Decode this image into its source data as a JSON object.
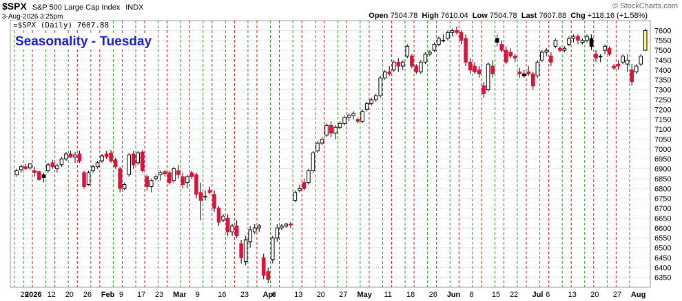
{
  "header": {
    "symbol": "$SPX",
    "name": "S&P 500 Large Cap Index",
    "exchange": "INDX",
    "date": "3-Aug-2026 3:25pm",
    "brand": "© StockCharts.com",
    "open_label": "Open",
    "open": "7504.78",
    "high_label": "High",
    "high": "7610.04",
    "low_label": "Low",
    "low": "7504.78",
    "last_label": "Last",
    "last": "7607.88",
    "chg_label": "Chg",
    "chg": "+118.16 (+1.58%)"
  },
  "legend": "▫$SPX (Daily) 7607.88",
  "annotation": "Seasonality - Tuesday",
  "colors": {
    "up": "#ffffff",
    "down": "#e0103a",
    "down_black": "#000000",
    "current": "#ffff66",
    "tuesday_line": "#d11c1c",
    "other_line": "#2a9a2a",
    "annotation": "#1a1adc"
  },
  "chart_data": {
    "type": "candlestick",
    "title": "$SPX S&P 500 Large Cap Index INDX",
    "annotation": "Seasonality - Tuesday",
    "ylim": [
      6300,
      7650
    ],
    "y_ticks": [
      6350,
      6400,
      6450,
      6500,
      6550,
      6600,
      6650,
      6700,
      6750,
      6800,
      6850,
      6900,
      6950,
      7000,
      7050,
      7100,
      7150,
      7200,
      7250,
      7300,
      7350,
      7400,
      7450,
      7500,
      7550,
      7600
    ],
    "x_ticks": [
      "29",
      "2026",
      "12",
      "20",
      "26",
      "Feb",
      "9",
      "17",
      "23",
      "Mar",
      "9",
      "16",
      "23",
      "Apr",
      "6",
      "13",
      "20",
      "27",
      "May",
      "11",
      "18",
      "26",
      "Jun",
      "8",
      "15",
      "22",
      "Jul",
      "6",
      "13",
      "20",
      "27",
      "Aug"
    ],
    "x_tick_index": [
      1,
      2,
      7,
      11,
      15,
      19,
      23,
      27,
      31,
      35,
      40,
      45,
      50,
      55,
      57,
      62,
      67,
      72,
      76,
      82,
      87,
      92,
      96,
      101,
      106,
      110,
      115,
      118,
      123,
      128,
      133,
      137
    ],
    "vertical_lines": [
      {
        "i": 0,
        "c": "g"
      },
      {
        "i": 2,
        "c": "g"
      },
      {
        "i": 4,
        "c": "r"
      },
      {
        "i": 7,
        "c": "g"
      },
      {
        "i": 9,
        "c": "r"
      },
      {
        "i": 12,
        "c": "g"
      },
      {
        "i": 14,
        "c": "r"
      },
      {
        "i": 17,
        "c": "g"
      },
      {
        "i": 19,
        "c": "r"
      },
      {
        "i": 22,
        "c": "g"
      },
      {
        "i": 24,
        "c": "r"
      },
      {
        "i": 27,
        "c": "g"
      },
      {
        "i": 29,
        "c": "r"
      },
      {
        "i": 32,
        "c": "g"
      },
      {
        "i": 34,
        "c": "r"
      },
      {
        "i": 37,
        "c": "g"
      },
      {
        "i": 39,
        "c": "r"
      },
      {
        "i": 42,
        "c": "g"
      },
      {
        "i": 44,
        "c": "r"
      },
      {
        "i": 47,
        "c": "g"
      },
      {
        "i": 49,
        "c": "r"
      },
      {
        "i": 52,
        "c": "g"
      },
      {
        "i": 54,
        "c": "r"
      },
      {
        "i": 57,
        "c": "g"
      },
      {
        "i": 59,
        "c": "r"
      },
      {
        "i": 62,
        "c": "g"
      },
      {
        "i": 64,
        "c": "r"
      },
      {
        "i": 67,
        "c": "g"
      },
      {
        "i": 69,
        "c": "r"
      },
      {
        "i": 72,
        "c": "g"
      },
      {
        "i": 74,
        "c": "r"
      },
      {
        "i": 77,
        "c": "g"
      },
      {
        "i": 79,
        "c": "r"
      },
      {
        "i": 82,
        "c": "g"
      },
      {
        "i": 84,
        "c": "r"
      },
      {
        "i": 87,
        "c": "g"
      },
      {
        "i": 89,
        "c": "r"
      },
      {
        "i": 92,
        "c": "g"
      },
      {
        "i": 94,
        "c": "r"
      },
      {
        "i": 97,
        "c": "g"
      },
      {
        "i": 99,
        "c": "r"
      },
      {
        "i": 102,
        "c": "g"
      },
      {
        "i": 104,
        "c": "r"
      },
      {
        "i": 107,
        "c": "g"
      },
      {
        "i": 109,
        "c": "r"
      },
      {
        "i": 112,
        "c": "g"
      },
      {
        "i": 114,
        "c": "r"
      },
      {
        "i": 117,
        "c": "g"
      },
      {
        "i": 119,
        "c": "r"
      },
      {
        "i": 122,
        "c": "g"
      },
      {
        "i": 124,
        "c": "r"
      },
      {
        "i": 127,
        "c": "g"
      },
      {
        "i": 129,
        "c": "r"
      },
      {
        "i": 132,
        "c": "g"
      },
      {
        "i": 134,
        "c": "r"
      },
      {
        "i": 137,
        "c": "g"
      }
    ],
    "ohlc": [
      [
        6870,
        6900,
        6860,
        6890
      ],
      [
        6895,
        6920,
        6880,
        6910
      ],
      [
        6910,
        6925,
        6895,
        6900
      ],
      [
        6905,
        6930,
        6895,
        6925
      ],
      [
        6890,
        6910,
        6860,
        6880
      ],
      [
        6885,
        6890,
        6840,
        6845
      ],
      [
        6870,
        6880,
        6830,
        6855
      ],
      [
        6890,
        6930,
        6880,
        6920
      ],
      [
        6930,
        6945,
        6900,
        6910
      ],
      [
        6900,
        6925,
        6880,
        6915
      ],
      [
        6920,
        6960,
        6910,
        6950
      ],
      [
        6950,
        6985,
        6940,
        6975
      ],
      [
        6975,
        6990,
        6955,
        6960
      ],
      [
        6960,
        6985,
        6930,
        6970
      ],
      [
        6975,
        6990,
        6930,
        6940
      ],
      [
        6880,
        6890,
        6800,
        6810
      ],
      [
        6820,
        6890,
        6815,
        6880
      ],
      [
        6890,
        6920,
        6880,
        6910
      ],
      [
        6910,
        6940,
        6900,
        6930
      ],
      [
        6940,
        6975,
        6930,
        6965
      ],
      [
        6975,
        6990,
        6950,
        6960
      ],
      [
        6980,
        6995,
        6930,
        6940
      ],
      [
        6945,
        6955,
        6900,
        6910
      ],
      [
        6900,
        6910,
        6780,
        6800
      ],
      [
        6800,
        6830,
        6790,
        6820
      ],
      [
        6870,
        6980,
        6860,
        6970
      ],
      [
        6975,
        6990,
        6900,
        6920
      ],
      [
        6930,
        6990,
        6920,
        6980
      ],
      [
        6985,
        6995,
        6880,
        6890
      ],
      [
        6860,
        6870,
        6790,
        6810
      ],
      [
        6810,
        6850,
        6780,
        6840
      ],
      [
        6850,
        6870,
        6840,
        6860
      ],
      [
        6870,
        6890,
        6840,
        6880
      ],
      [
        6885,
        6895,
        6860,
        6875
      ],
      [
        6880,
        6890,
        6820,
        6830
      ],
      [
        6840,
        6910,
        6830,
        6900
      ],
      [
        6890,
        6920,
        6850,
        6870
      ],
      [
        6860,
        6880,
        6800,
        6820
      ],
      [
        6830,
        6870,
        6800,
        6860
      ],
      [
        6880,
        6890,
        6850,
        6860
      ],
      [
        6870,
        6880,
        6750,
        6770
      ],
      [
        6780,
        6830,
        6640,
        6740
      ],
      [
        6760,
        6790,
        6740,
        6760
      ],
      [
        6790,
        6810,
        6770,
        6780
      ],
      [
        6770,
        6790,
        6680,
        6700
      ],
      [
        6700,
        6710,
        6610,
        6630
      ],
      [
        6640,
        6670,
        6630,
        6660
      ],
      [
        6650,
        6670,
        6560,
        6580
      ],
      [
        6580,
        6620,
        6560,
        6610
      ],
      [
        6610,
        6640,
        6550,
        6560
      ],
      [
        6520,
        6540,
        6420,
        6450
      ],
      [
        6430,
        6560,
        6410,
        6540
      ],
      [
        6530,
        6610,
        6500,
        6590
      ],
      [
        6580,
        6620,
        6570,
        6600
      ],
      [
        6600,
        6620,
        6580,
        6610
      ],
      [
        6450,
        6470,
        6340,
        6360
      ],
      [
        6380,
        6400,
        6320,
        6340
      ],
      [
        6440,
        6560,
        6420,
        6550
      ],
      [
        6550,
        6620,
        6530,
        6600
      ],
      [
        6600,
        6620,
        6590,
        6610
      ],
      [
        6610,
        6625,
        6600,
        6620
      ],
      [
        6620,
        6630,
        6600,
        6615
      ],
      [
        6740,
        6790,
        6730,
        6780
      ],
      [
        6790,
        6820,
        6780,
        6800
      ],
      [
        6830,
        6850,
        6790,
        6800
      ],
      [
        6830,
        6900,
        6820,
        6890
      ],
      [
        6890,
        6990,
        6880,
        6980
      ],
      [
        6990,
        7040,
        6980,
        7030
      ],
      [
        7030,
        7060,
        7020,
        7050
      ],
      [
        7070,
        7130,
        7060,
        7120
      ],
      [
        7120,
        7140,
        7060,
        7080
      ],
      [
        7080,
        7120,
        7050,
        7110
      ],
      [
        7110,
        7140,
        7100,
        7130
      ],
      [
        7130,
        7170,
        7120,
        7160
      ],
      [
        7160,
        7180,
        7140,
        7170
      ],
      [
        7170,
        7190,
        7150,
        7180
      ],
      [
        7150,
        7160,
        7130,
        7140
      ],
      [
        7140,
        7200,
        7130,
        7190
      ],
      [
        7200,
        7240,
        7190,
        7230
      ],
      [
        7230,
        7260,
        7220,
        7250
      ],
      [
        7250,
        7280,
        7240,
        7270
      ],
      [
        7270,
        7370,
        7260,
        7360
      ],
      [
        7360,
        7400,
        7350,
        7390
      ],
      [
        7390,
        7420,
        7370,
        7380
      ],
      [
        7400,
        7450,
        7390,
        7440
      ],
      [
        7440,
        7460,
        7390,
        7420
      ],
      [
        7420,
        7450,
        7400,
        7440
      ],
      [
        7470,
        7530,
        7460,
        7520
      ],
      [
        7470,
        7480,
        7410,
        7420
      ],
      [
        7420,
        7430,
        7380,
        7390
      ],
      [
        7390,
        7450,
        7380,
        7440
      ],
      [
        7440,
        7490,
        7430,
        7480
      ],
      [
        7480,
        7500,
        7470,
        7490
      ],
      [
        7500,
        7540,
        7490,
        7530
      ],
      [
        7530,
        7570,
        7520,
        7560
      ],
      [
        7550,
        7580,
        7540,
        7550
      ],
      [
        7560,
        7600,
        7550,
        7590
      ],
      [
        7590,
        7610,
        7570,
        7600
      ],
      [
        7600,
        7620,
        7580,
        7590
      ],
      [
        7590,
        7600,
        7530,
        7550
      ],
      [
        7560,
        7580,
        7420,
        7440
      ],
      [
        7440,
        7460,
        7380,
        7400
      ],
      [
        7420,
        7440,
        7380,
        7390
      ],
      [
        7400,
        7420,
        7360,
        7380
      ],
      [
        7320,
        7340,
        7260,
        7280
      ],
      [
        7300,
        7440,
        7290,
        7430
      ],
      [
        7420,
        7450,
        7360,
        7380
      ],
      [
        7560,
        7580,
        7520,
        7540
      ],
      [
        7530,
        7550,
        7490,
        7500
      ],
      [
        7500,
        7520,
        7430,
        7440
      ],
      [
        7490,
        7510,
        7460,
        7470
      ],
      [
        7470,
        7480,
        7440,
        7460
      ],
      [
        7390,
        7410,
        7360,
        7380
      ],
      [
        7380,
        7400,
        7360,
        7370
      ],
      [
        7390,
        7420,
        7370,
        7380
      ],
      [
        7380,
        7390,
        7300,
        7320
      ],
      [
        7370,
        7450,
        7360,
        7440
      ],
      [
        7450,
        7500,
        7440,
        7490
      ],
      [
        7490,
        7510,
        7470,
        7500
      ],
      [
        7470,
        7490,
        7420,
        7440
      ],
      [
        7520,
        7560,
        7510,
        7550
      ],
      [
        7510,
        7520,
        7490,
        7500
      ],
      [
        7500,
        7520,
        7490,
        7510
      ],
      [
        7530,
        7570,
        7520,
        7560
      ],
      [
        7560,
        7580,
        7540,
        7570
      ],
      [
        7570,
        7580,
        7530,
        7550
      ],
      [
        7540,
        7560,
        7530,
        7550
      ],
      [
        7550,
        7580,
        7540,
        7570
      ],
      [
        7560,
        7580,
        7500,
        7520
      ],
      [
        7480,
        7500,
        7440,
        7460
      ],
      [
        7470,
        7480,
        7440,
        7470
      ],
      [
        7500,
        7530,
        7480,
        7520
      ],
      [
        7510,
        7520,
        7470,
        7480
      ],
      [
        7420,
        7430,
        7400,
        7410
      ],
      [
        7430,
        7450,
        7400,
        7420
      ],
      [
        7440,
        7480,
        7430,
        7470
      ],
      [
        7430,
        7480,
        7390,
        7450
      ],
      [
        7400,
        7430,
        7320,
        7340
      ],
      [
        7390,
        7430,
        7380,
        7420
      ],
      [
        7430,
        7480,
        7420,
        7470
      ],
      [
        7500,
        7610,
        7500,
        7600
      ]
    ],
    "black_down_index": [
      6,
      16,
      18,
      96,
      107,
      113,
      128,
      131
    ]
  }
}
